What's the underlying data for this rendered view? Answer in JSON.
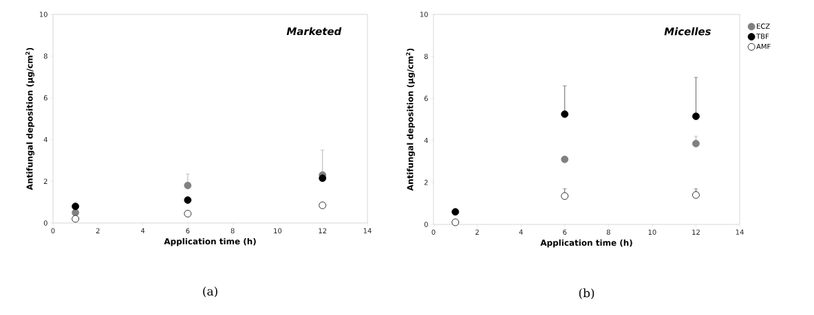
{
  "chart_data": [
    {
      "type": "scatter",
      "title": "Marketed",
      "xlabel": "Application time (h)",
      "ylabel": "Antifungal deposition (µg/cm$^{2}$)",
      "annotations": [
        "(a)"
      ],
      "x": [
        1,
        6,
        12
      ],
      "xlim": [
        0,
        14
      ],
      "xticks": [
        0,
        2,
        4,
        6,
        8,
        10,
        12,
        14
      ],
      "ylim": [
        0,
        10
      ],
      "yticks": [
        0,
        2,
        4,
        6,
        8,
        10
      ],
      "grid": false,
      "legend": false,
      "marker": "circle",
      "series": [
        {
          "color": "#808080",
          "values": [
            0.5,
            1.8,
            2.3
          ],
          "errors": [
            null,
            [
              1.8,
              2.35
            ],
            [
              2.3,
              3.5
            ]
          ]
        },
        {
          "color": "#000000",
          "values": [
            0.8,
            1.1,
            2.15
          ],
          "errors": [
            null,
            null,
            null
          ]
        },
        {
          "color": "#ffffff",
          "values": [
            0.2,
            0.45,
            0.85
          ],
          "errors": [
            null,
            [
              0.45,
              0.55
            ],
            [
              0.85,
              0.95
            ]
          ]
        }
      ]
    },
    {
      "type": "scatter",
      "title": "Micelles",
      "xlabel": "Application time (h)",
      "ylabel": "Antifungal deposition (µg/cm$^{2}$)",
      "annotations": [
        "(b)"
      ],
      "x": [
        1,
        6,
        12
      ],
      "xlim": [
        0,
        14
      ],
      "xticks": [
        0,
        2,
        4,
        6,
        8,
        10,
        12,
        14
      ],
      "ylim": [
        0,
        10
      ],
      "yticks": [
        0,
        2,
        4,
        6,
        8,
        10
      ],
      "grid": false,
      "legend": "right",
      "marker": "circle",
      "series": [
        {
          "name": "ECZ",
          "color": "#808080",
          "values": [
            null,
            3.1,
            3.85
          ],
          "errors": [
            null,
            null,
            [
              3.85,
              4.2
            ]
          ]
        },
        {
          "name": "TBF",
          "color": "#000000",
          "values": [
            0.6,
            5.25,
            5.15
          ],
          "errors": [
            null,
            [
              5.25,
              6.6
            ],
            [
              5.15,
              7.0
            ]
          ]
        },
        {
          "name": "AMF",
          "color": "#ffffff",
          "values": [
            0.1,
            1.35,
            1.4
          ],
          "errors": [
            [
              0.1,
              0.2
            ],
            [
              1.35,
              1.7
            ],
            [
              1.4,
              1.7
            ]
          ]
        }
      ]
    }
  ]
}
